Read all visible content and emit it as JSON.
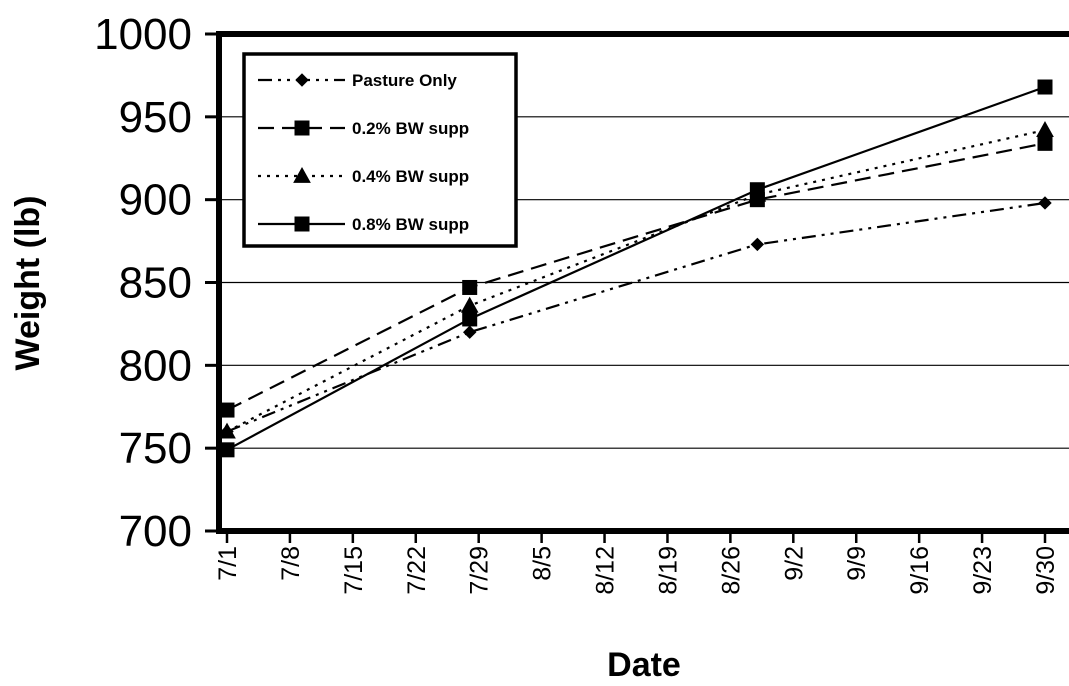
{
  "chart_data": {
    "type": "line",
    "title": "",
    "xlabel": "Date",
    "ylabel": "Weight (lb)",
    "ylim": [
      700,
      1000
    ],
    "yticks": [
      700,
      750,
      800,
      850,
      900,
      950,
      1000
    ],
    "xticks": [
      "7/1",
      "7/8",
      "7/15",
      "7/22",
      "7/29",
      "8/5",
      "8/12",
      "8/19",
      "8/26",
      "9/2",
      "9/9",
      "9/16",
      "9/23",
      "9/30"
    ],
    "x": [
      "7/1",
      "7/28",
      "8/29",
      "9/30"
    ],
    "grid": "horizontal",
    "legend_position": "top-left",
    "series": [
      {
        "name": "Pasture Only",
        "marker": "diamond",
        "dash": "dash-dot-dot",
        "values": [
          760,
          820,
          873,
          898
        ]
      },
      {
        "name": "0.2% BW supp",
        "marker": "square",
        "dash": "long-dash",
        "values": [
          773,
          847,
          900,
          934
        ]
      },
      {
        "name": "0.4% BW supp",
        "marker": "triangle",
        "dash": "dotted",
        "values": [
          760,
          836,
          903,
          942
        ]
      },
      {
        "name": "0.8% BW supp",
        "marker": "square",
        "dash": "solid",
        "values": [
          749,
          828,
          906,
          968
        ]
      }
    ]
  }
}
